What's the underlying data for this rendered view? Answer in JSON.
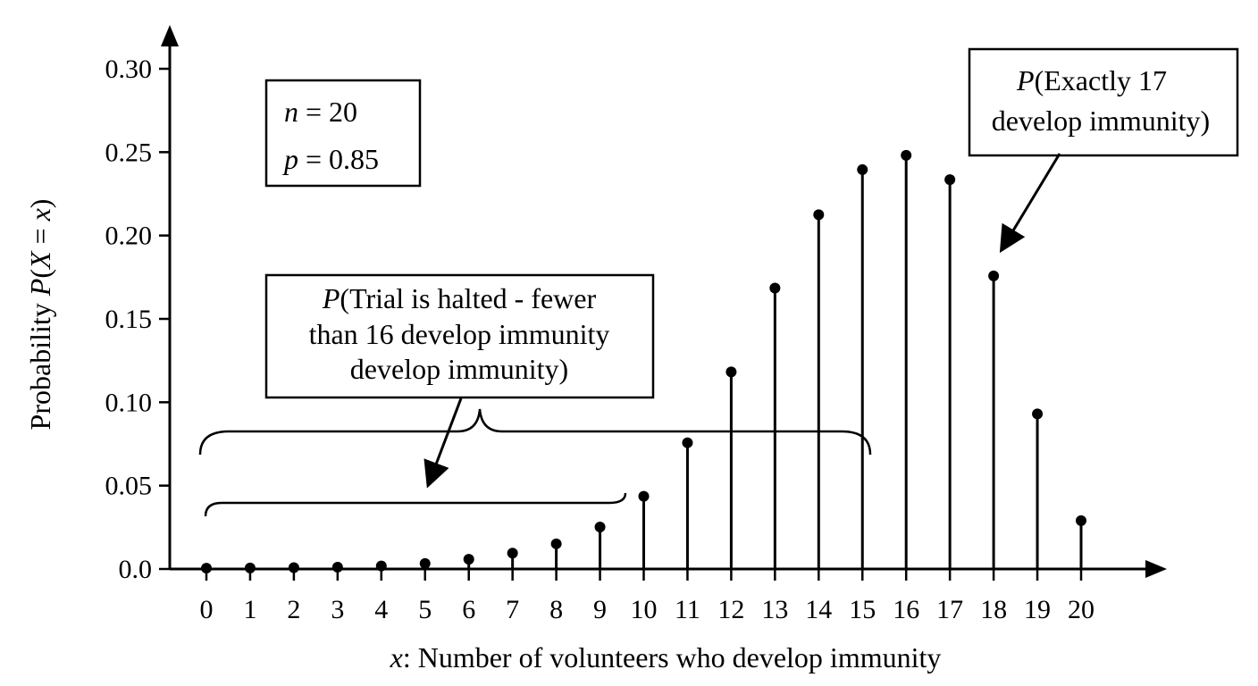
{
  "chart_data": {
    "type": "stem",
    "xlabel_var": "x",
    "xlabel_text": ": Number of volunteers who develop immunity",
    "ylabel_prefix": "Probability ",
    "ylabel_P": "P",
    "ylabel_X": "X",
    "ylabel_eq": " = ",
    "ylabel_x": "x",
    "ylim": [
      0,
      0.3
    ],
    "xlim": [
      0,
      20
    ],
    "x": [
      0,
      1,
      2,
      3,
      4,
      5,
      6,
      7,
      8,
      9,
      10,
      11,
      12,
      13,
      14,
      15,
      16,
      17,
      18,
      19,
      20
    ],
    "values": [
      0.0005,
      0.0006,
      0.0008,
      0.0011,
      0.0018,
      0.0033,
      0.0058,
      0.0095,
      0.0151,
      0.0252,
      0.0436,
      0.0757,
      0.1182,
      0.1685,
      0.2125,
      0.2395,
      0.2481,
      0.2335,
      0.1758,
      0.093,
      0.029
    ],
    "y_ticks": [
      "0.0",
      "0.05",
      "0.10",
      "0.15",
      "0.20",
      "0.25",
      "0.30"
    ],
    "y_tick_values": [
      0,
      0.05,
      0.1,
      0.15,
      0.2,
      0.25,
      0.3
    ],
    "x_ticks": [
      "0",
      "1",
      "2",
      "3",
      "4",
      "5",
      "6",
      "7",
      "8",
      "9",
      "10",
      "11",
      "12",
      "13",
      "14",
      "15",
      "16",
      "17",
      "18",
      "19",
      "20"
    ],
    "params_box": {
      "n_var": "n",
      "n_text": " = 20",
      "p_var": "p",
      "p_text": " = 0.85"
    },
    "annotation_halted": {
      "P": "P",
      "line1": "(Trial is halted - fewer",
      "line2": "than 16 develop immunity",
      "line3": "develop immunity)"
    },
    "annotation_exact": {
      "P": "P",
      "line1": "(Exactly 17",
      "line2": "develop immunity)"
    }
  }
}
